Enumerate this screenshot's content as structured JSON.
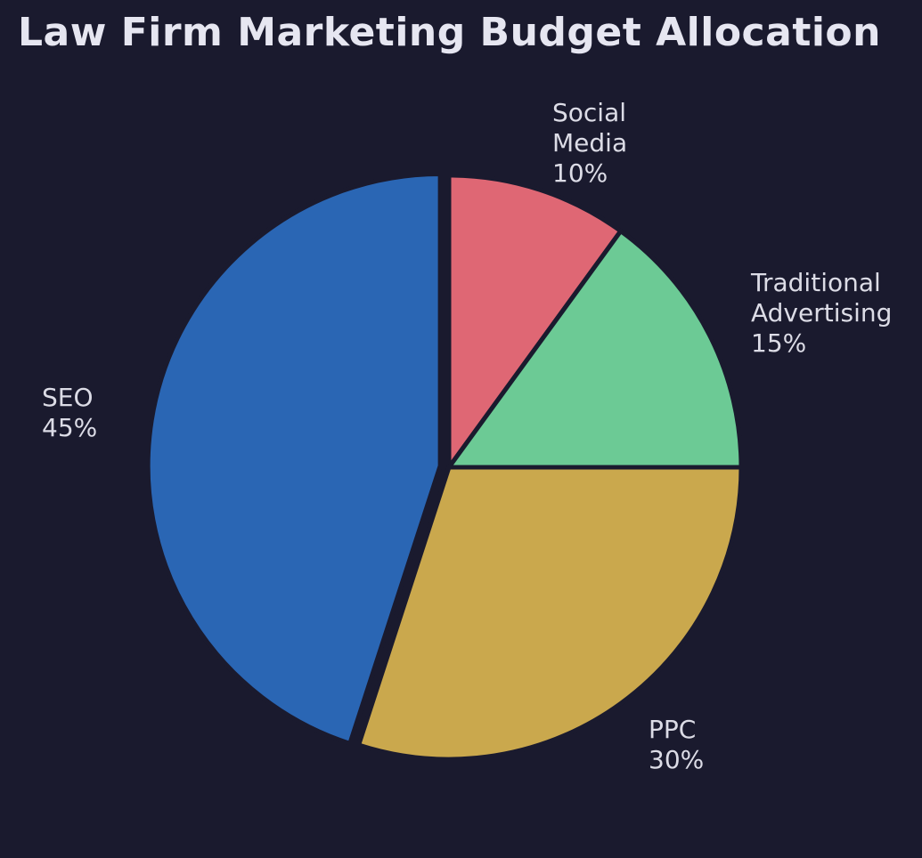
{
  "chart_data": {
    "type": "pie",
    "title": "Law Firm Marketing Budget Allocation",
    "legend": "none",
    "background_color": "#1a1a2e",
    "title_color": "#e6e6f1",
    "label_color": "#dcdce6",
    "start_angle": "12 o'clock, clockwise",
    "slices": [
      {
        "label": "Social Media",
        "value": 10,
        "pct_text": "10%",
        "color": "#df6774",
        "label_lines": "Social\nMedia\n10%",
        "exploded": false
      },
      {
        "label": "Traditional Advertising",
        "value": 15,
        "pct_text": "15%",
        "color": "#6cca95",
        "label_lines": "Traditional\nAdvertising\n15%",
        "exploded": false
      },
      {
        "label": "PPC",
        "value": 30,
        "pct_text": "30%",
        "color": "#caa84d",
        "label_lines": "PPC\n30%",
        "exploded": false
      },
      {
        "label": "SEO",
        "value": 45,
        "pct_text": "45%",
        "color": "#2a66b4",
        "label_lines": "SEO\n45%",
        "exploded": true
      }
    ]
  }
}
